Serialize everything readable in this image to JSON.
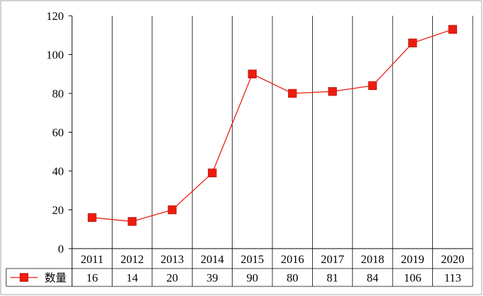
{
  "chart_data": {
    "type": "line",
    "categories": [
      "2011",
      "2012",
      "2013",
      "2014",
      "2015",
      "2016",
      "2017",
      "2018",
      "2019",
      "2020"
    ],
    "series": [
      {
        "name": "数量",
        "values": [
          16,
          14,
          20,
          39,
          90,
          80,
          81,
          84,
          106,
          113
        ]
      }
    ],
    "ylim": [
      0,
      120
    ],
    "yticks": [
      "0",
      "20",
      "40",
      "60",
      "80",
      "100",
      "120"
    ],
    "grid": "vertical category separators",
    "legend": "data-table",
    "color": "#ee1c0e"
  }
}
